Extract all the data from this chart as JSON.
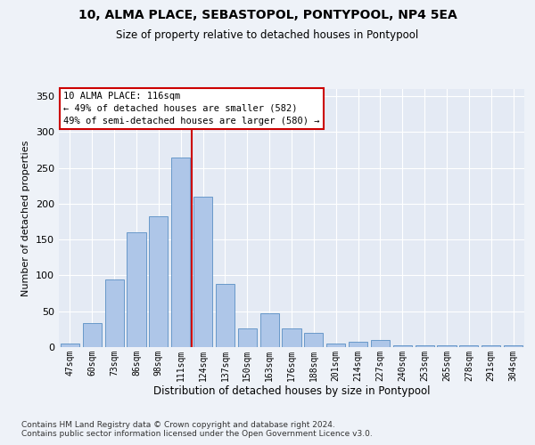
{
  "title": "10, ALMA PLACE, SEBASTOPOL, PONTYPOOL, NP4 5EA",
  "subtitle": "Size of property relative to detached houses in Pontypool",
  "xlabel": "Distribution of detached houses by size in Pontypool",
  "ylabel": "Number of detached properties",
  "categories": [
    "47sqm",
    "60sqm",
    "73sqm",
    "86sqm",
    "98sqm",
    "111sqm",
    "124sqm",
    "137sqm",
    "150sqm",
    "163sqm",
    "176sqm",
    "188sqm",
    "201sqm",
    "214sqm",
    "227sqm",
    "240sqm",
    "253sqm",
    "265sqm",
    "278sqm",
    "291sqm",
    "304sqm"
  ],
  "values": [
    5,
    33,
    94,
    160,
    183,
    265,
    210,
    88,
    26,
    47,
    26,
    20,
    5,
    8,
    10,
    3,
    2,
    2,
    2,
    2,
    2
  ],
  "bar_color": "#aec6e8",
  "bar_edgecolor": "#5a8fc4",
  "vline_x": 5.5,
  "vline_color": "#cc0000",
  "annotation_text": "10 ALMA PLACE: 116sqm\n← 49% of detached houses are smaller (582)\n49% of semi-detached houses are larger (580) →",
  "ylim": [
    0,
    360
  ],
  "yticks": [
    0,
    50,
    100,
    150,
    200,
    250,
    300,
    350
  ],
  "footer1": "Contains HM Land Registry data © Crown copyright and database right 2024.",
  "footer2": "Contains public sector information licensed under the Open Government Licence v3.0.",
  "bg_color": "#eef2f8",
  "plot_bg": "#e4eaf4"
}
